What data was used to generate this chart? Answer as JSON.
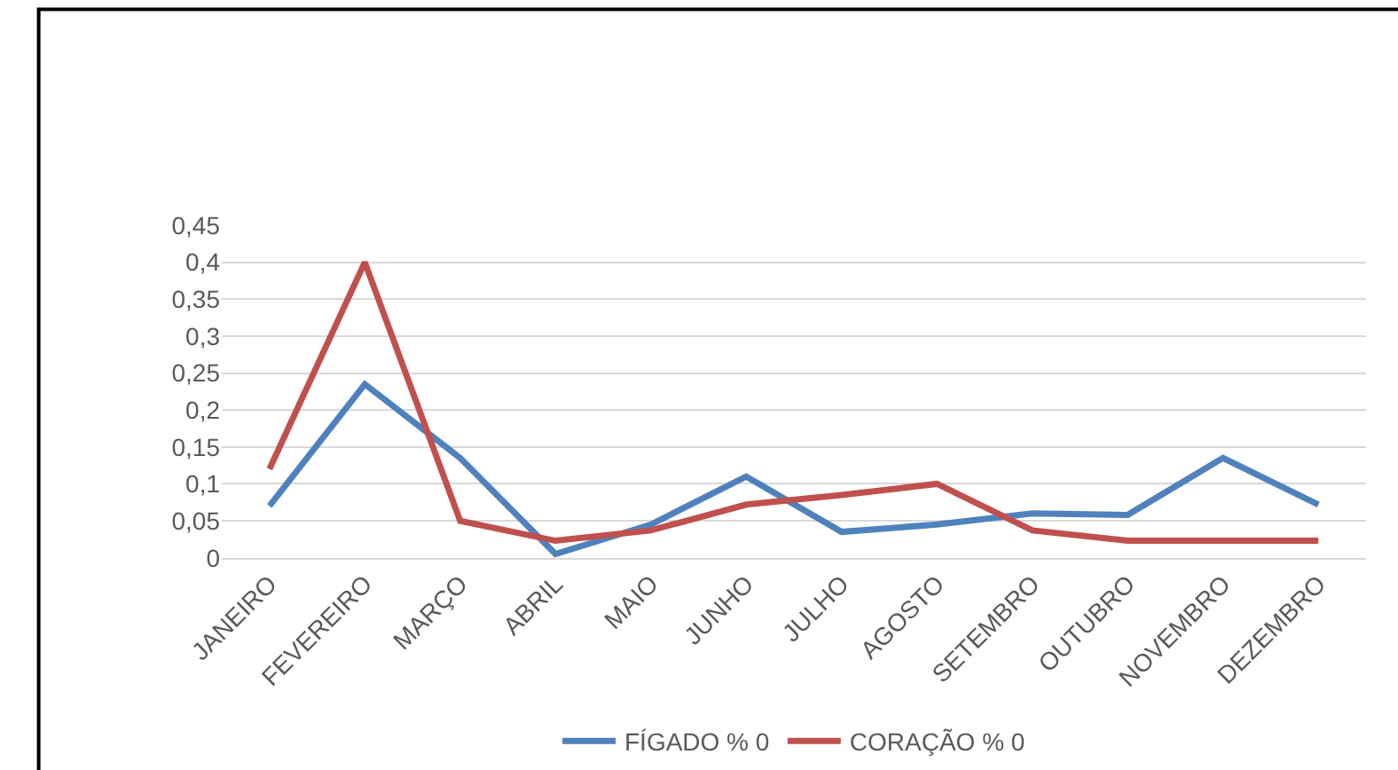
{
  "chart_data": {
    "type": "line",
    "categories": [
      "JANEIRO",
      "FEVEREIRO",
      "MARÇO",
      "ABRIL",
      "MAIO",
      "JUNHO",
      "JULHO",
      "AGOSTO",
      "SETEMBRO",
      "OUTUBRO",
      "NOVEMBRO",
      "DEZEMBRO"
    ],
    "series": [
      {
        "name": "FÍGADO % 0",
        "color": "#4f81bd",
        "values": [
          0.07,
          0.235,
          0.135,
          0.005,
          0.045,
          0.11,
          0.035,
          0.045,
          0.06,
          0.058,
          0.135,
          0.072
        ]
      },
      {
        "name": "CORAÇÃO % 0",
        "color": "#c0504d",
        "values": [
          0.12,
          0.4,
          0.05,
          0.023,
          0.037,
          0.072,
          0.085,
          0.1,
          0.037,
          0.023,
          0.023,
          0.023
        ]
      }
    ],
    "ylim": [
      0,
      0.45
    ],
    "yticks": [
      {
        "value": 0,
        "label": "0"
      },
      {
        "value": 0.05,
        "label": "0,05"
      },
      {
        "value": 0.1,
        "label": "0,1"
      },
      {
        "value": 0.15,
        "label": "0,15"
      },
      {
        "value": 0.2,
        "label": "0,2"
      },
      {
        "value": 0.25,
        "label": "0,25"
      },
      {
        "value": 0.3,
        "label": "0,3"
      },
      {
        "value": 0.35,
        "label": "0,35"
      },
      {
        "value": 0.4,
        "label": "0,4"
      },
      {
        "value": 0.45,
        "label": "0,45"
      }
    ],
    "grid": "y",
    "legend": "bottom",
    "marker": "none",
    "line_style": "solid"
  }
}
